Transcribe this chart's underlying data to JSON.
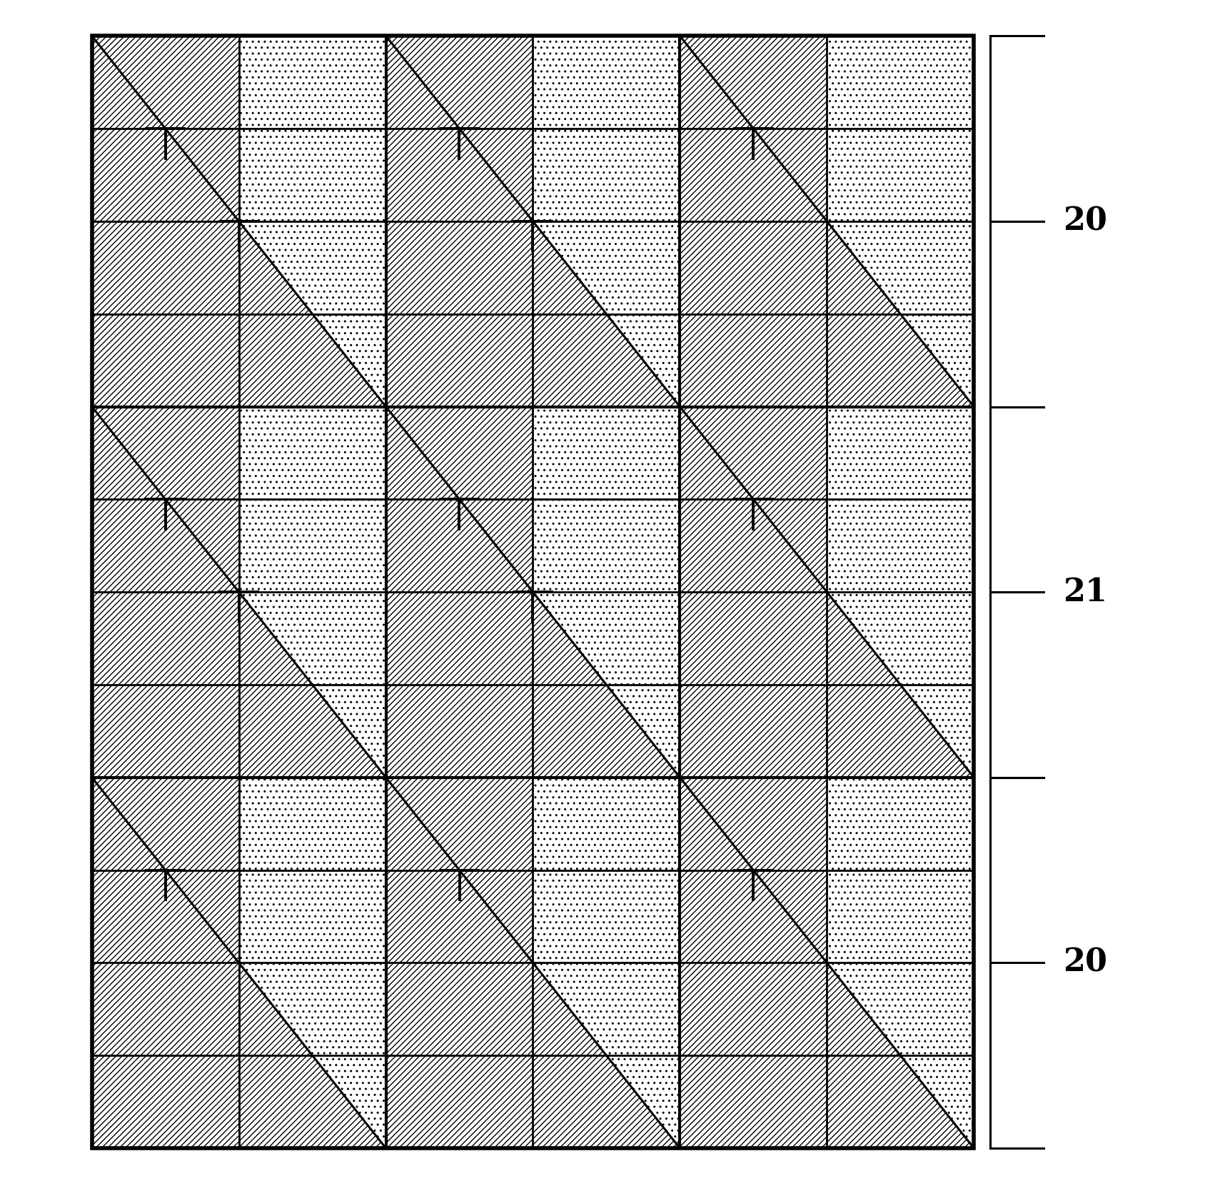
{
  "fig_width": 17.16,
  "fig_height": 16.75,
  "ml": 0.075,
  "mr": 0.795,
  "mb": 0.04,
  "mt": 0.97,
  "SC_COLS": 3,
  "SC_ROWS": 3,
  "lw_outer": 4.0,
  "lw_super": 3.0,
  "lw_tile": 2.0,
  "lw_diag": 2.2,
  "label_fontsize": 32,
  "labels": [
    "20",
    "21",
    "20"
  ],
  "hatch_lines": "////",
  "hatch_dots": ".."
}
